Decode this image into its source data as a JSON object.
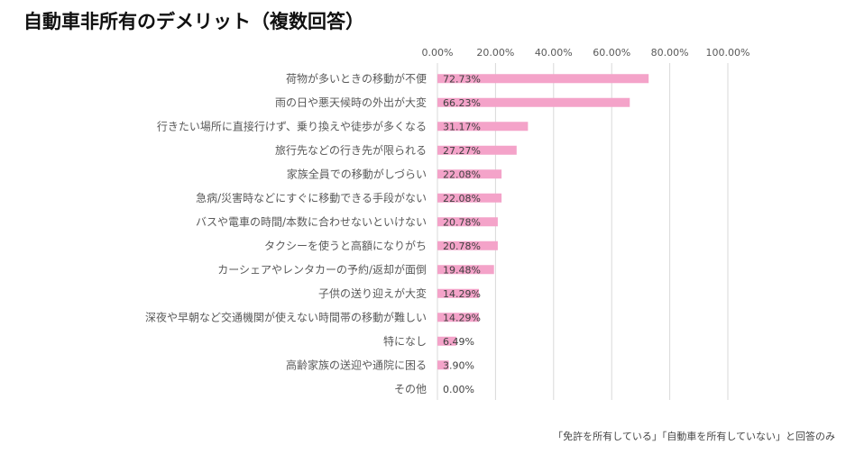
{
  "title": "自動車非所有のデメリット（複数回答）",
  "note": "「免許を所有している」「自動車を所有していない」と回答のみ",
  "colors": {
    "bar": "#f4a3c9",
    "grid": "#d9d9d9",
    "text": "#595959"
  },
  "chart_data": {
    "type": "bar",
    "orientation": "horizontal",
    "title": "自動車非所有のデメリット（複数回答）",
    "xlim": [
      0,
      100
    ],
    "x_ticks": [
      "0.00%",
      "20.00%",
      "40.00%",
      "60.00%",
      "80.00%",
      "100.00%"
    ],
    "grid": true,
    "categories": [
      "荷物が多いときの移動が不便",
      "雨の日や悪天候時の外出が大変",
      "行きたい場所に直接行けず、乗り換えや徒歩が多くなる",
      "旅行先などの行き先が限られる",
      "家族全員での移動がしづらい",
      "急病/災害時などにすぐに移動できる手段がない",
      "バスや電車の時間/本数に合わせないといけない",
      "タクシーを使うと高額になりがち",
      "カーシェアやレンタカーの予約/返却が面倒",
      "子供の送り迎えが大変",
      "深夜や早朝など交通機関が使えない時間帯の移動が難しい",
      "特になし",
      "高齢家族の送迎や通院に困る",
      "その他"
    ],
    "values": [
      72.73,
      66.23,
      31.17,
      27.27,
      22.08,
      22.08,
      20.78,
      20.78,
      19.48,
      14.29,
      14.29,
      6.49,
      3.9,
      0.0
    ],
    "data_labels": [
      "72.73%",
      "66.23%",
      "31.17%",
      "27.27%",
      "22.08%",
      "22.08%",
      "20.78%",
      "20.78%",
      "19.48%",
      "14.29%",
      "14.29%",
      "6.49%",
      "3.90%",
      "0.00%"
    ]
  }
}
